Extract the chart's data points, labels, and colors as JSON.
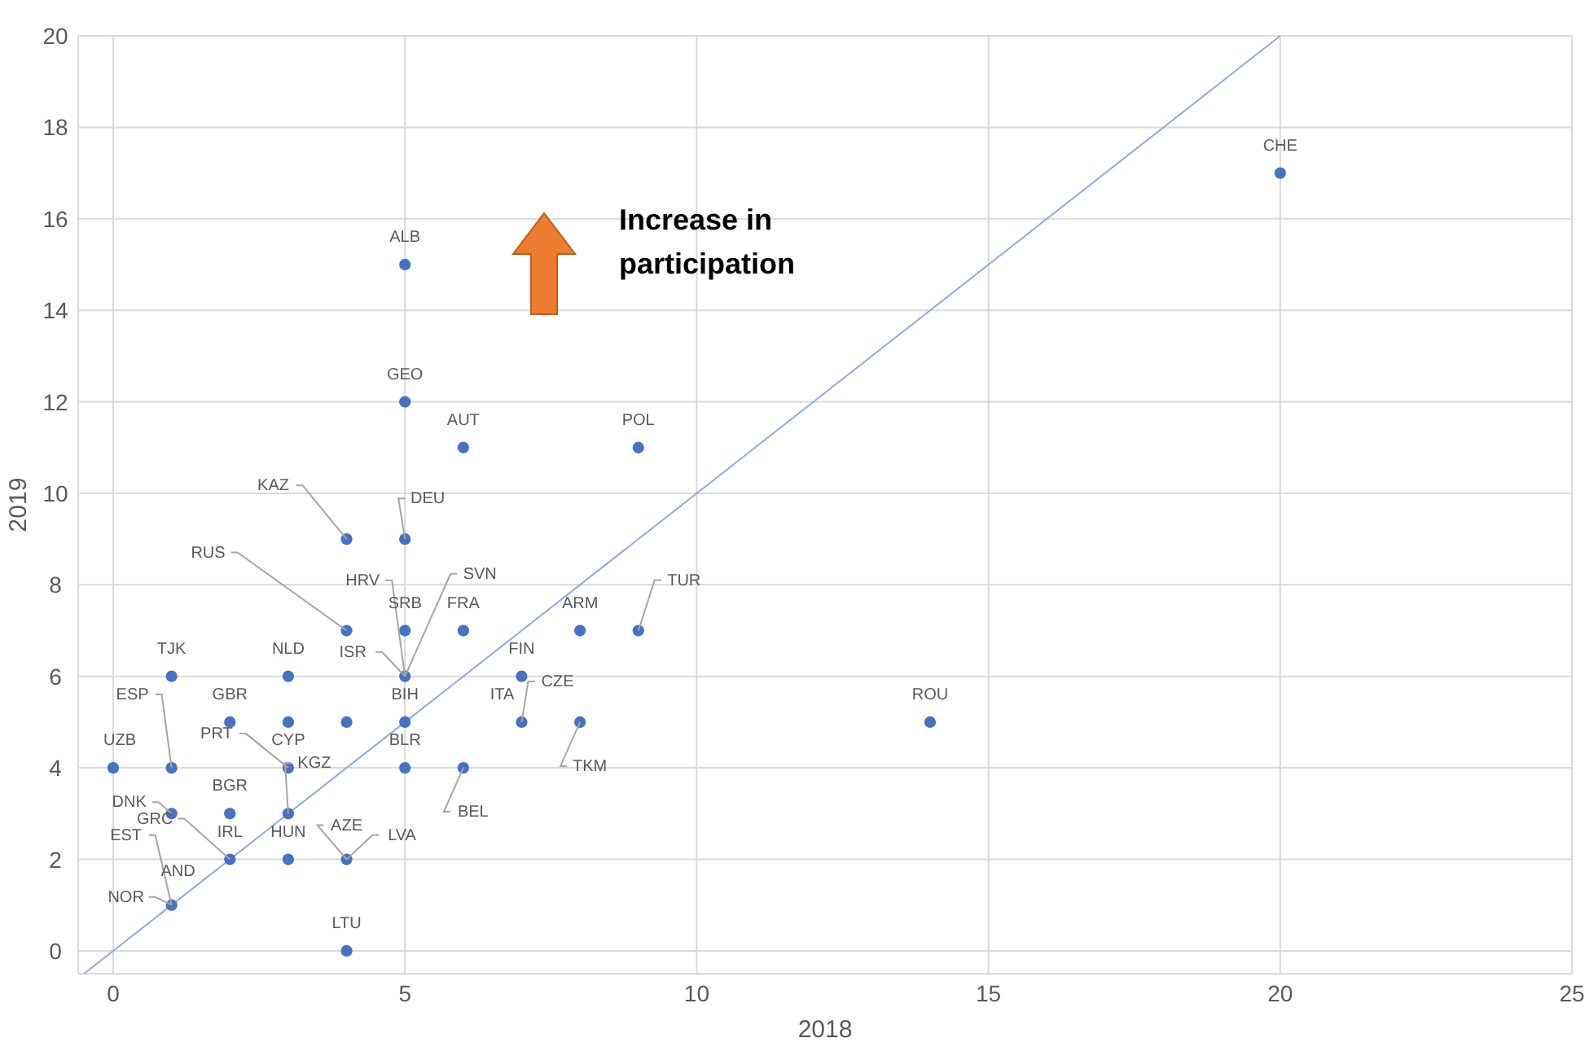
{
  "chart_data": {
    "type": "scatter",
    "xlabel": "2018",
    "ylabel": "2019",
    "xlim": [
      -0.6,
      25
    ],
    "ylim": [
      -0.5,
      20
    ],
    "xticks": [
      0,
      5,
      10,
      15,
      20,
      25
    ],
    "yticks": [
      0,
      2,
      4,
      6,
      8,
      10,
      12,
      14,
      16,
      18,
      20
    ],
    "grid": true,
    "series": [
      {
        "type": "line",
        "color": "#8faadc",
        "x": [
          -0.5,
          20
        ],
        "values": [
          -0.5,
          20
        ],
        "marker": "none"
      },
      {
        "color": "#4472c4",
        "marker": "circle",
        "x": [
          5,
          5,
          6,
          9,
          20,
          4,
          5,
          4,
          5,
          5,
          6,
          8,
          9,
          1,
          3,
          7,
          2,
          3,
          4,
          5,
          7,
          8,
          14,
          0,
          1,
          5,
          6,
          1,
          2,
          2,
          3,
          4,
          1,
          4,
          3,
          3
        ],
        "values": [
          15,
          12,
          11,
          11,
          17,
          9,
          9,
          7,
          6,
          7,
          7,
          7,
          7,
          6,
          6,
          6,
          5,
          5,
          5,
          5,
          5,
          5,
          5,
          4,
          4,
          4,
          4,
          3,
          3,
          2,
          2,
          2,
          1,
          0,
          4,
          3
        ]
      }
    ],
    "annotations": [
      "Increase in participation",
      {
        "text": "ALB",
        "x": 5,
        "y": 15
      },
      {
        "text": "GEO",
        "x": 5,
        "y": 12
      },
      {
        "text": "AUT",
        "x": 6,
        "y": 11
      },
      {
        "text": "POL",
        "x": 9,
        "y": 11
      },
      {
        "text": "CHE",
        "x": 20,
        "y": 17
      },
      {
        "text": "KAZ",
        "x": 4,
        "y": 9
      },
      {
        "text": "DEU",
        "x": 5,
        "y": 9
      },
      {
        "text": "RUS",
        "x": 4,
        "y": 7
      },
      {
        "text": "HRV",
        "x": 5,
        "y": 6
      },
      {
        "text": "SVN",
        "x": 5,
        "y": 6
      },
      {
        "text": "ISR",
        "x": 5,
        "y": 6
      },
      {
        "text": "SRB",
        "x": 5,
        "y": 7
      },
      {
        "text": "FRA",
        "x": 6,
        "y": 7
      },
      {
        "text": "ARM",
        "x": 8,
        "y": 7
      },
      {
        "text": "TUR",
        "x": 9,
        "y": 7
      },
      {
        "text": "TJK",
        "x": 1,
        "y": 6
      },
      {
        "text": "NLD",
        "x": 3,
        "y": 6
      },
      {
        "text": "FIN",
        "x": 7,
        "y": 6
      },
      {
        "text": "GBR",
        "x": 2,
        "y": 5
      },
      {
        "text": "BIH",
        "x": 5,
        "y": 5
      },
      {
        "text": "ITA",
        "x": 7,
        "y": 5
      },
      {
        "text": "CZE",
        "x": 7,
        "y": 5
      },
      {
        "text": "TKM",
        "x": 8,
        "y": 5
      },
      {
        "text": "ROU",
        "x": 14,
        "y": 5
      },
      {
        "text": "UZB",
        "x": 0,
        "y": 4
      },
      {
        "text": "ESP",
        "x": 1,
        "y": 4
      },
      {
        "text": "PRT",
        "x": 3,
        "y": 4
      },
      {
        "text": "CYP",
        "x": 3,
        "y": 4
      },
      {
        "text": "KGZ",
        "x": 3,
        "y": 3
      },
      {
        "text": "BLR",
        "x": 5,
        "y": 4
      },
      {
        "text": "BEL",
        "x": 6,
        "y": 4
      },
      {
        "text": "DNK",
        "x": 1,
        "y": 3
      },
      {
        "text": "BGR",
        "x": 2,
        "y": 3
      },
      {
        "text": "GRC",
        "x": 2,
        "y": 2
      },
      {
        "text": "IRL",
        "x": 2,
        "y": 2
      },
      {
        "text": "HUN",
        "x": 3,
        "y": 2
      },
      {
        "text": "AZE",
        "x": 4,
        "y": 2
      },
      {
        "text": "LVA",
        "x": 4,
        "y": 2
      },
      {
        "text": "EST",
        "x": 1,
        "y": 1
      },
      {
        "text": "AND",
        "x": 1,
        "y": 1
      },
      {
        "text": "NOR",
        "x": 1,
        "y": 1
      },
      {
        "text": "LTU",
        "x": 4,
        "y": 0
      }
    ]
  }
}
